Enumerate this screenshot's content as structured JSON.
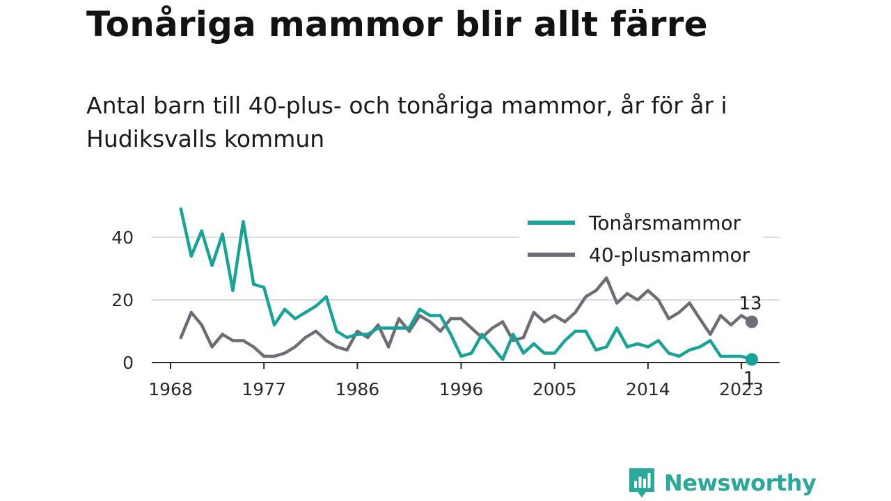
{
  "title": "Tonåriga mammor blir allt färre",
  "subtitle": "Antal barn till 40-plus- och tonåriga mammor, år för år i Hudiksvalls kommun",
  "brand": {
    "name": "Newsworthy",
    "color": "#2aa89a"
  },
  "chart_data": {
    "type": "line",
    "x_tick_labels": [
      "1968",
      "1977",
      "1986",
      "1996",
      "2005",
      "2014",
      "2023"
    ],
    "y_tick_labels": [
      "0",
      "20",
      "40"
    ],
    "ylim": [
      0,
      50
    ],
    "xlim": [
      1968,
      2024
    ],
    "grid": true,
    "legend_position": "top-right",
    "x": [
      1969,
      1970,
      1971,
      1972,
      1973,
      1974,
      1975,
      1976,
      1977,
      1978,
      1979,
      1980,
      1981,
      1982,
      1983,
      1984,
      1985,
      1986,
      1987,
      1988,
      1989,
      1990,
      1991,
      1992,
      1993,
      1994,
      1995,
      1996,
      1997,
      1998,
      1999,
      2000,
      2001,
      2002,
      2003,
      2004,
      2005,
      2006,
      2007,
      2008,
      2009,
      2010,
      2011,
      2012,
      2013,
      2014,
      2015,
      2016,
      2017,
      2018,
      2019,
      2020,
      2021,
      2022,
      2023,
      2024
    ],
    "series": [
      {
        "name": "Tonårsmammor",
        "color": "#17a398",
        "values": [
          49,
          34,
          42,
          31,
          41,
          23,
          45,
          25,
          24,
          12,
          17,
          14,
          16,
          18,
          21,
          10,
          8,
          9,
          9,
          11,
          11,
          11,
          11,
          17,
          15,
          15,
          9,
          2,
          3,
          9,
          5,
          1,
          9,
          3,
          6,
          3,
          3,
          7,
          10,
          10,
          4,
          5,
          11,
          5,
          6,
          5,
          7,
          3,
          2,
          4,
          5,
          7,
          2,
          2,
          2,
          1
        ],
        "end_label": "1"
      },
      {
        "name": "40-plusmammor",
        "color": "#6d6d75",
        "values": [
          8,
          16,
          12,
          5,
          9,
          7,
          7,
          5,
          2,
          2,
          3,
          5,
          8,
          10,
          7,
          5,
          4,
          10,
          8,
          12,
          5,
          14,
          10,
          15,
          13,
          10,
          14,
          14,
          11,
          8,
          11,
          13,
          7,
          8,
          16,
          13,
          15,
          13,
          16,
          21,
          23,
          27,
          19,
          22,
          20,
          23,
          20,
          14,
          16,
          19,
          14,
          9,
          15,
          12,
          15,
          13
        ],
        "end_label": "13"
      }
    ]
  }
}
